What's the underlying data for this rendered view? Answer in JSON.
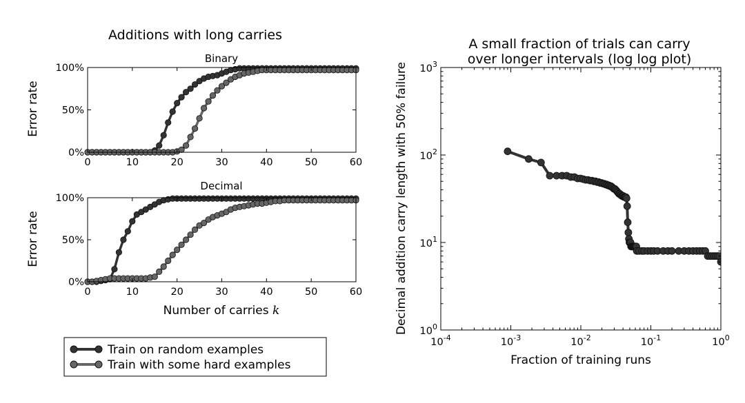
{
  "chart_data": [
    {
      "type": "line",
      "title": "Additions with long carries",
      "subtitle": "Binary",
      "xlabel": "",
      "ylabel": "Error rate",
      "xlim": [
        0,
        60
      ],
      "ylim": [
        0,
        100
      ],
      "xticks": [
        "0",
        "10",
        "20",
        "30",
        "40",
        "50",
        "60"
      ],
      "yticks": [
        "0%",
        "50%",
        "100%"
      ],
      "series": [
        {
          "name": "Train on random examples",
          "color": "#333333",
          "x": [
            0,
            1,
            2,
            3,
            4,
            5,
            6,
            7,
            8,
            9,
            10,
            11,
            12,
            13,
            14,
            15,
            16,
            17,
            18,
            19,
            20,
            21,
            22,
            23,
            24,
            25,
            26,
            27,
            28,
            29,
            30,
            31,
            32,
            33,
            34,
            35,
            36,
            37,
            38,
            39,
            40,
            41,
            42,
            43,
            44,
            45,
            46,
            47,
            48,
            49,
            50,
            51,
            52,
            53,
            54,
            55,
            56,
            57,
            58,
            59,
            60
          ],
          "values": [
            0,
            0,
            0,
            0,
            0,
            0,
            0,
            0,
            0,
            0,
            0,
            0,
            0,
            0,
            0,
            2,
            8,
            20,
            35,
            48,
            58,
            65,
            71,
            75,
            80,
            84,
            87,
            89,
            90,
            91,
            93,
            95,
            97,
            98,
            99,
            99,
            99,
            99,
            99,
            99,
            99,
            99,
            99,
            99,
            99,
            99,
            99,
            99,
            99,
            99,
            99,
            99,
            99,
            99,
            99,
            99,
            99,
            99,
            99,
            99,
            99
          ]
        },
        {
          "name": "Train with some hard examples",
          "color": "#666666",
          "x": [
            0,
            1,
            2,
            3,
            4,
            5,
            6,
            7,
            8,
            9,
            10,
            11,
            12,
            13,
            14,
            15,
            16,
            17,
            18,
            19,
            20,
            21,
            22,
            23,
            24,
            25,
            26,
            27,
            28,
            29,
            30,
            31,
            32,
            33,
            34,
            35,
            36,
            37,
            38,
            39,
            40,
            41,
            42,
            43,
            44,
            45,
            46,
            47,
            48,
            49,
            50,
            51,
            52,
            53,
            54,
            55,
            56,
            57,
            58,
            59,
            60
          ],
          "values": [
            0,
            0,
            0,
            0,
            0,
            0,
            0,
            0,
            0,
            0,
            0,
            0,
            0,
            0,
            0,
            0,
            0,
            0,
            0,
            0,
            1,
            3,
            8,
            18,
            28,
            40,
            52,
            60,
            67,
            73,
            78,
            82,
            86,
            89,
            91,
            93,
            94,
            95,
            96,
            97,
            97,
            97,
            97,
            97,
            97,
            97,
            97,
            97,
            97,
            97,
            97,
            97,
            97,
            97,
            97,
            97,
            97,
            97,
            97,
            97,
            97
          ]
        }
      ]
    },
    {
      "type": "line",
      "subtitle": "Decimal",
      "xlabel": "Number of carries k",
      "xlabel_text": "Number of carries ",
      "xlabel_var": "k",
      "ylabel": "Error rate",
      "xlim": [
        0,
        60
      ],
      "ylim": [
        0,
        100
      ],
      "xticks": [
        "0",
        "10",
        "20",
        "30",
        "40",
        "50",
        "60"
      ],
      "yticks": [
        "0%",
        "50%",
        "100%"
      ],
      "series": [
        {
          "name": "Train on random examples",
          "color": "#333333",
          "x": [
            0,
            1,
            2,
            3,
            4,
            5,
            6,
            7,
            8,
            9,
            10,
            11,
            12,
            13,
            14,
            15,
            16,
            17,
            18,
            19,
            20,
            21,
            22,
            23,
            24,
            25,
            26,
            27,
            28,
            29,
            30,
            31,
            32,
            33,
            34,
            35,
            36,
            37,
            38,
            39,
            40,
            41,
            42,
            43,
            44,
            45,
            46,
            47,
            48,
            49,
            50,
            51,
            52,
            53,
            54,
            55,
            56,
            57,
            58,
            59,
            60
          ],
          "values": [
            0,
            0,
            0,
            1,
            2,
            3,
            15,
            35,
            50,
            60,
            72,
            80,
            83,
            86,
            89,
            92,
            95,
            97,
            98,
            99,
            99,
            99,
            99,
            99,
            99,
            99,
            99,
            99,
            99,
            99,
            99,
            99,
            99,
            99,
            99,
            99,
            99,
            99,
            99,
            99,
            99,
            99,
            99,
            99,
            99,
            99,
            99,
            99,
            99,
            99,
            99,
            99,
            99,
            99,
            99,
            99,
            99,
            99,
            99,
            99,
            99
          ]
        },
        {
          "name": "Train with some hard examples",
          "color": "#666666",
          "x": [
            0,
            1,
            2,
            3,
            4,
            5,
            6,
            7,
            8,
            9,
            10,
            11,
            12,
            13,
            14,
            15,
            16,
            17,
            18,
            19,
            20,
            21,
            22,
            23,
            24,
            25,
            26,
            27,
            28,
            29,
            30,
            31,
            32,
            33,
            34,
            35,
            36,
            37,
            38,
            39,
            40,
            41,
            42,
            43,
            44,
            45,
            46,
            47,
            48,
            49,
            50,
            51,
            52,
            53,
            54,
            55,
            56,
            57,
            58,
            59,
            60
          ],
          "values": [
            0,
            0,
            1,
            2,
            3,
            4,
            4,
            4,
            4,
            4,
            4,
            4,
            4,
            4,
            5,
            6,
            12,
            18,
            25,
            32,
            38,
            44,
            50,
            56,
            62,
            67,
            70,
            74,
            77,
            79,
            81,
            83,
            86,
            88,
            89,
            90,
            91,
            92,
            93,
            93,
            94,
            95,
            96,
            96,
            97,
            97,
            97,
            97,
            97,
            97,
            97,
            97,
            97,
            97,
            97,
            97,
            97,
            97,
            97,
            97,
            97
          ]
        }
      ]
    },
    {
      "type": "line",
      "title_lines": [
        "A small fraction of trials can carry",
        "over longer intervals (log log plot)"
      ],
      "xlabel": "Fraction of training runs",
      "ylabel": "Decimal addition carry length with 50% failure",
      "xscale": "log",
      "yscale": "log",
      "xlim": [
        0.0001,
        1
      ],
      "ylim": [
        1,
        1000
      ],
      "xticks": [
        {
          "base": "10",
          "exp": "-4"
        },
        {
          "base": "10",
          "exp": "-3"
        },
        {
          "base": "10",
          "exp": "-2"
        },
        {
          "base": "10",
          "exp": "-1"
        },
        {
          "base": "10",
          "exp": "0"
        }
      ],
      "yticks": [
        {
          "base": "10",
          "exp": "0"
        },
        {
          "base": "10",
          "exp": "1"
        },
        {
          "base": "10",
          "exp": "2"
        },
        {
          "base": "10",
          "exp": "3"
        }
      ],
      "series": [
        {
          "name": "carry length",
          "color": "#333333",
          "x": [
            0.0009,
            0.0018,
            0.0027,
            0.0036,
            0.0045,
            0.0054,
            0.0063,
            0.0072,
            0.0081,
            0.009,
            0.0099,
            0.0108,
            0.0117,
            0.0126,
            0.0135,
            0.0144,
            0.0153,
            0.0162,
            0.0171,
            0.018,
            0.0189,
            0.0198,
            0.0207,
            0.0216,
            0.0225,
            0.0234,
            0.0243,
            0.0252,
            0.0261,
            0.027,
            0.0279,
            0.0288,
            0.0297,
            0.0306,
            0.0315,
            0.0324,
            0.0333,
            0.0342,
            0.0351,
            0.036,
            0.0369,
            0.0378,
            0.0387,
            0.0396,
            0.0405,
            0.0414,
            0.0423,
            0.0432,
            0.0441,
            0.045,
            0.0459,
            0.0468,
            0.0477,
            0.0486,
            0.0495,
            0.0504,
            0.0513,
            0.0522,
            0.0531,
            0.054,
            0.0549,
            0.0558,
            0.0567,
            0.0576,
            0.0585,
            0.0594,
            0.0603,
            0.0612,
            0.0621,
            0.063,
            0.068,
            0.075,
            0.08,
            0.09,
            0.1,
            0.11,
            0.125,
            0.15,
            0.175,
            0.2,
            0.25,
            0.3,
            0.35,
            0.4,
            0.45,
            0.5,
            0.55,
            0.6,
            0.65,
            0.7,
            0.75,
            0.8,
            0.85,
            0.9,
            0.95,
            1.0
          ],
          "values": [
            110,
            90,
            82,
            58,
            58,
            58,
            58,
            56,
            56,
            54,
            54,
            53,
            52,
            52,
            51,
            51,
            50,
            50,
            49,
            49,
            48,
            48,
            47,
            47,
            46,
            46,
            45,
            45,
            44,
            44,
            43,
            42,
            41,
            41,
            40,
            39,
            38,
            37,
            36,
            36,
            35,
            35,
            34,
            34,
            34,
            33,
            33,
            33,
            33,
            32,
            26,
            17,
            13,
            11,
            10,
            10,
            10,
            9,
            9,
            9,
            9,
            9,
            9,
            9,
            9,
            9,
            9,
            9,
            9,
            8,
            8,
            8,
            8,
            8,
            8,
            8,
            8,
            8,
            8,
            8,
            8,
            8,
            8,
            8,
            8,
            8,
            8,
            8,
            7,
            7,
            7,
            7,
            7,
            7,
            7,
            6
          ]
        }
      ]
    }
  ],
  "legend": {
    "placement": "bottom-left",
    "items": [
      "Train on random examples",
      "Train with some hard examples"
    ]
  }
}
